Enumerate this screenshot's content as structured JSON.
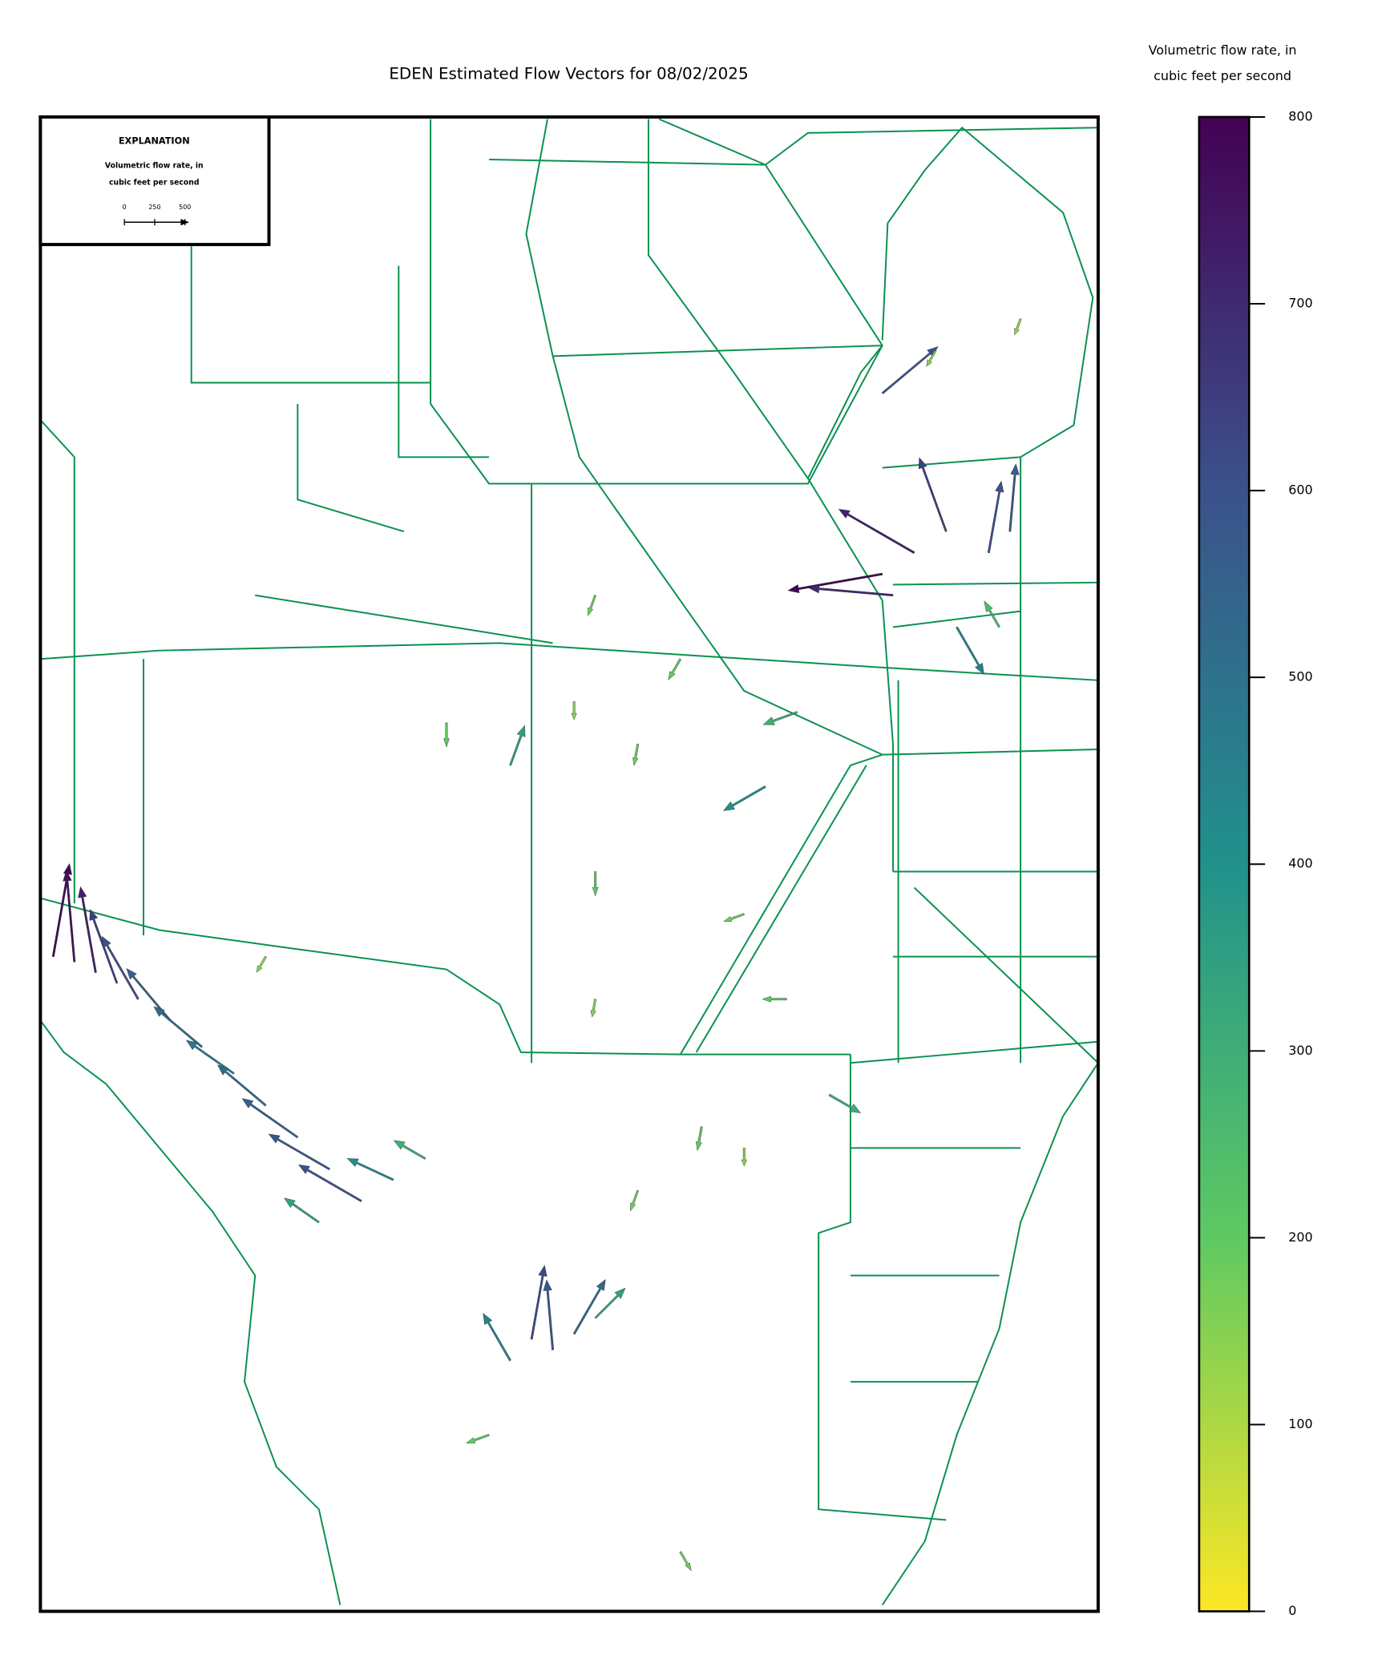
{
  "chart_data": {
    "type": "quiver",
    "title": "EDEN Estimated Flow Vectors for 08/02/2025",
    "colorbar_label": [
      "Volumetric flow rate, in",
      "cubic feet per second"
    ],
    "clim": [
      0,
      800
    ],
    "cticks": [
      0,
      100,
      200,
      300,
      400,
      500,
      600,
      700,
      800
    ],
    "colormap": [
      "#fde725",
      "#5ec962",
      "#21918c",
      "#3b528b",
      "#440154"
    ],
    "key": {
      "title": "EXPLANATION",
      "label": [
        "Volumetric flow rate, in",
        "cubic feet per second"
      ],
      "ticks": [
        0,
        250,
        500
      ]
    },
    "vectors": {
      "magnitude": [
        780,
        760,
        720,
        650,
        600,
        560,
        520,
        480,
        520,
        560,
        580,
        600,
        420,
        300,
        350,
        620,
        580,
        520,
        450,
        350,
        790,
        720,
        650,
        600,
        560,
        700,
        600,
        450,
        400,
        300,
        350,
        300,
        180,
        200,
        150,
        180,
        200,
        180,
        200,
        150,
        200,
        180,
        150,
        200,
        180,
        200,
        150,
        140,
        250,
        150
      ],
      "direction": [
        80,
        95,
        100,
        110,
        120,
        130,
        140,
        145,
        140,
        145,
        150,
        150,
        155,
        150,
        145,
        80,
        95,
        60,
        120,
        45,
        190,
        150,
        110,
        80,
        85,
        175,
        40,
        300,
        210,
        200,
        70,
        330,
        250,
        240,
        270,
        260,
        270,
        200,
        180,
        260,
        260,
        250,
        270,
        200,
        300,
        270,
        240,
        250,
        120,
        240
      ]
    }
  }
}
